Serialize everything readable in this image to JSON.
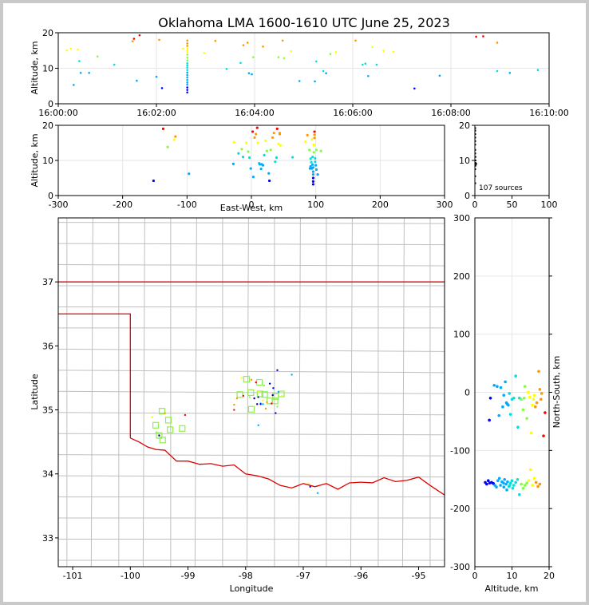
{
  "figure": {
    "title": "Oklahoma LMA 1600-1610 UTC June 25, 2023",
    "source_count_label": "107 sources"
  },
  "colors": {
    "frame_bg": "#c9c9c9",
    "state_border": "#e00000",
    "county_lines": "#c0c0c0",
    "station_marker": "#90ee50",
    "grid": "#e6e6e6"
  },
  "chart_data": [
    {
      "id": "time-altitude",
      "type": "scatter",
      "ylabel": "Altitude, km",
      "xlim": [
        "16:00:00",
        "16:10:00"
      ],
      "ylim": [
        0,
        20
      ],
      "x_ticks": [
        "16:00:00",
        "16:02:00",
        "16:04:00",
        "16:06:00",
        "16:08:00",
        "16:10:00"
      ],
      "y_ticks": [
        0,
        10,
        20
      ],
      "grid": true,
      "points": [
        [
          0.3,
          15.0
        ],
        [
          0.45,
          15.5
        ],
        [
          0.7,
          15.3
        ],
        [
          0.75,
          12.0
        ],
        [
          0.8,
          8.7
        ],
        [
          0.55,
          5.3
        ],
        [
          1.1,
          8.7
        ],
        [
          1.4,
          13.3
        ],
        [
          2.0,
          11.0
        ],
        [
          2.65,
          17.6
        ],
        [
          2.7,
          18.3
        ],
        [
          2.9,
          19.3
        ],
        [
          2.8,
          6.5
        ],
        [
          3.5,
          7.6
        ],
        [
          3.6,
          18.0
        ],
        [
          3.7,
          4.4
        ],
        [
          4.45,
          15.5
        ],
        [
          4.6,
          14.5
        ],
        [
          4.6,
          17.8
        ],
        [
          4.6,
          17.0
        ],
        [
          4.6,
          16.3
        ],
        [
          4.6,
          15.6
        ],
        [
          4.6,
          15.0
        ],
        [
          4.6,
          13.8
        ],
        [
          4.6,
          13.0
        ],
        [
          4.6,
          12.2
        ],
        [
          4.6,
          11.4
        ],
        [
          4.6,
          10.8
        ],
        [
          4.6,
          10.2
        ],
        [
          4.6,
          9.5
        ],
        [
          4.6,
          8.8
        ],
        [
          4.6,
          8.1
        ],
        [
          4.6,
          7.4
        ],
        [
          4.6,
          6.7
        ],
        [
          4.6,
          6.0
        ],
        [
          4.6,
          5.4
        ],
        [
          4.6,
          4.6
        ],
        [
          4.6,
          3.9
        ],
        [
          4.6,
          3.2
        ],
        [
          5.2,
          14.3
        ],
        [
          5.6,
          17.7
        ],
        [
          6.0,
          9.8
        ],
        [
          6.5,
          11.5
        ],
        [
          6.6,
          16.5
        ],
        [
          6.75,
          17.2
        ],
        [
          6.8,
          8.6
        ],
        [
          6.9,
          8.3
        ],
        [
          6.95,
          13.1
        ],
        [
          7.3,
          16.1
        ],
        [
          7.85,
          13.1
        ],
        [
          8.0,
          17.8
        ],
        [
          8.05,
          12.8
        ],
        [
          8.3,
          14.8
        ],
        [
          8.6,
          6.4
        ],
        [
          9.15,
          6.3
        ],
        [
          9.2,
          11.9
        ],
        [
          9.45,
          9.2
        ],
        [
          9.55,
          8.6
        ],
        [
          9.7,
          14.0
        ],
        [
          9.9,
          14.5
        ],
        [
          10.6,
          17.8
        ],
        [
          10.85,
          11.0
        ],
        [
          10.95,
          11.3
        ],
        [
          11.05,
          7.8
        ],
        [
          11.2,
          16.0
        ],
        [
          11.35,
          11.0
        ],
        [
          11.6,
          14.9
        ],
        [
          11.95,
          14.6
        ],
        [
          12.7,
          4.3
        ],
        [
          13.6,
          7.9
        ],
        [
          14.9,
          18.9
        ],
        [
          15.15,
          19.0
        ],
        [
          15.65,
          17.2
        ],
        [
          15.65,
          9.2
        ],
        [
          16.1,
          8.7
        ],
        [
          17.1,
          9.5
        ]
      ]
    },
    {
      "id": "east-west-altitude",
      "type": "scatter",
      "xlabel": "East-West, km",
      "ylabel": "Altitude, km",
      "xlim": [
        -300,
        300
      ],
      "ylim": [
        0,
        20
      ],
      "x_ticks": [
        -300,
        -200,
        -100,
        0,
        100,
        200,
        300
      ],
      "y_ticks": [
        0,
        10,
        20
      ],
      "grid": true,
      "points": [
        [
          -137,
          19.0
        ],
        [
          -130,
          13.8
        ],
        [
          -120,
          15.9
        ],
        [
          -118,
          16.8
        ],
        [
          -152,
          4.2
        ],
        [
          -97,
          6.2
        ],
        [
          -28,
          9.0
        ],
        [
          -27,
          15.2
        ],
        [
          -20,
          12.0
        ],
        [
          -15,
          13.2
        ],
        [
          -13,
          11.0
        ],
        [
          -8,
          15.0
        ],
        [
          -5,
          12.5
        ],
        [
          -3,
          10.8
        ],
        [
          -1,
          7.7
        ],
        [
          2,
          18.2
        ],
        [
          3,
          5.3
        ],
        [
          5,
          16.5
        ],
        [
          7,
          17.5
        ],
        [
          9,
          19.3
        ],
        [
          10,
          15.0
        ],
        [
          12,
          9.2
        ],
        [
          13,
          8.9
        ],
        [
          15,
          7.6
        ],
        [
          16,
          8.9
        ],
        [
          18,
          8.6
        ],
        [
          20,
          11.5
        ],
        [
          22,
          15.6
        ],
        [
          24,
          12.7
        ],
        [
          27,
          6.3
        ],
        [
          28,
          4.2
        ],
        [
          30,
          13.0
        ],
        [
          33,
          16.5
        ],
        [
          35,
          17.8
        ],
        [
          37,
          9.6
        ],
        [
          39,
          10.8
        ],
        [
          40,
          19.0
        ],
        [
          42,
          14.7
        ],
        [
          44,
          17.5
        ],
        [
          44,
          17.8
        ],
        [
          45,
          14.3
        ],
        [
          64,
          10.9
        ],
        [
          84,
          15.3
        ],
        [
          87,
          17.2
        ],
        [
          90,
          13.0
        ],
        [
          91,
          7.7
        ],
        [
          92,
          10.5
        ],
        [
          93,
          9.5
        ],
        [
          94,
          16.0
        ],
        [
          95,
          11.0
        ],
        [
          95,
          8.8
        ],
        [
          96,
          8.0
        ],
        [
          96,
          6.8
        ],
        [
          96,
          6.0
        ],
        [
          96,
          5.0
        ],
        [
          96,
          4.0
        ],
        [
          96,
          3.2
        ],
        [
          97,
          12.3
        ],
        [
          97,
          14.4
        ],
        [
          98,
          16.4
        ],
        [
          98,
          17.3
        ],
        [
          98,
          18.2
        ],
        [
          99,
          10.6
        ],
        [
          99,
          9.6
        ],
        [
          100,
          8.6
        ],
        [
          101,
          7.4
        ],
        [
          101,
          13.0
        ],
        [
          103,
          6.0
        ],
        [
          108,
          12.7
        ],
        [
          94,
          7.7
        ],
        [
          92,
          8.3
        ]
      ]
    },
    {
      "id": "altitude-histogram",
      "type": "scatter",
      "xlim": [
        0,
        100
      ],
      "ylim": [
        0,
        20
      ],
      "x_ticks": [
        0,
        50,
        100
      ],
      "y_ticks": [
        0,
        10,
        20
      ],
      "points": [
        [
          1,
          3.5
        ],
        [
          1,
          5.5
        ],
        [
          1,
          7.5
        ],
        [
          2,
          8.5
        ],
        [
          3,
          9.0
        ],
        [
          2,
          10.0
        ],
        [
          2,
          11.0
        ],
        [
          1,
          12.0
        ],
        [
          1,
          13.0
        ],
        [
          1,
          14.5
        ],
        [
          1,
          15.5
        ],
        [
          1,
          16.5
        ],
        [
          1,
          17.5
        ],
        [
          1,
          18.5
        ],
        [
          2,
          9.3
        ],
        [
          1,
          19.2
        ]
      ]
    },
    {
      "id": "plan-view",
      "type": "scatter",
      "xlabel": "Longitude",
      "ylabel": "Latitude",
      "xlim": [
        -101.25,
        -94.55
      ],
      "ylim": [
        32.55,
        38.0
      ],
      "x_ticks": [
        -101,
        -100,
        -99,
        -98,
        -97,
        -96,
        -95
      ],
      "y_ticks": [
        33,
        34,
        35,
        36,
        37
      ],
      "stations": [
        [
          -97.985,
          35.48
        ],
        [
          -97.76,
          35.43
        ],
        [
          -98.1,
          35.24
        ],
        [
          -97.91,
          35.27
        ],
        [
          -97.75,
          35.25
        ],
        [
          -97.67,
          35.24
        ],
        [
          -97.48,
          35.21
        ],
        [
          -97.38,
          35.25
        ],
        [
          -97.58,
          35.14
        ],
        [
          -97.49,
          35.14
        ],
        [
          -97.9,
          35.01
        ],
        [
          -99.45,
          34.98
        ],
        [
          -99.34,
          34.84
        ],
        [
          -99.56,
          34.76
        ],
        [
          -99.1,
          34.71
        ],
        [
          -99.31,
          34.69
        ],
        [
          -99.5,
          34.6
        ],
        [
          -99.44,
          34.53
        ]
      ],
      "points": [
        [
          -97.45,
          35.62
        ],
        [
          -97.2,
          35.55
        ],
        [
          -98.07,
          35.5
        ],
        [
          -97.9,
          35.47
        ],
        [
          -97.82,
          35.43
        ],
        [
          -97.68,
          35.38
        ],
        [
          -97.58,
          35.41
        ],
        [
          -97.52,
          35.34
        ],
        [
          -97.43,
          35.28
        ],
        [
          -97.37,
          35.22
        ],
        [
          -98.15,
          35.18
        ],
        [
          -98.04,
          35.22
        ],
        [
          -97.93,
          35.2
        ],
        [
          -97.85,
          35.18
        ],
        [
          -97.78,
          35.2
        ],
        [
          -97.74,
          35.1
        ],
        [
          -97.7,
          35.15
        ],
        [
          -97.63,
          35.12
        ],
        [
          -97.55,
          35.1
        ],
        [
          -97.45,
          35.05
        ],
        [
          -97.8,
          35.09
        ],
        [
          -97.74,
          35.09
        ],
        [
          -97.7,
          35.09
        ],
        [
          -97.78,
          35.28
        ],
        [
          -98.2,
          35.08
        ],
        [
          -98.2,
          35.0
        ],
        [
          -97.63,
          35.28
        ],
        [
          -97.53,
          35.23
        ],
        [
          -97.48,
          34.95
        ],
        [
          -97.78,
          34.76
        ],
        [
          -99.62,
          34.89
        ],
        [
          -99.4,
          34.95
        ],
        [
          -99.05,
          34.92
        ],
        [
          -99.55,
          34.65
        ],
        [
          -99.5,
          34.6
        ],
        [
          -96.88,
          33.8
        ],
        [
          -96.75,
          33.7
        ],
        [
          -96.9,
          33.85
        ],
        [
          -97.65,
          35.02
        ]
      ]
    },
    {
      "id": "altitude-north-south",
      "type": "scatter",
      "xlabel": "Altitude, km",
      "ylabel": "North-South, km",
      "xlim": [
        0,
        20
      ],
      "ylim": [
        -300,
        300
      ],
      "x_ticks": [
        0,
        10,
        20
      ],
      "y_ticks": [
        -300,
        -200,
        -100,
        0,
        100,
        200,
        300
      ],
      "grid": true,
      "points": [
        [
          4.2,
          -10
        ],
        [
          3.9,
          -48
        ],
        [
          5.2,
          12
        ],
        [
          6.0,
          10
        ],
        [
          6.5,
          -40
        ],
        [
          7.0,
          8
        ],
        [
          7.8,
          -5
        ],
        [
          7.5,
          -25
        ],
        [
          8.2,
          18
        ],
        [
          8.5,
          -18
        ],
        [
          8.7,
          -20
        ],
        [
          9.0,
          -22
        ],
        [
          9.3,
          -2
        ],
        [
          9.6,
          -38
        ],
        [
          10.0,
          -12
        ],
        [
          10.5,
          -10
        ],
        [
          11.0,
          28
        ],
        [
          11.6,
          -60
        ],
        [
          12.0,
          -10
        ],
        [
          12.5,
          -12
        ],
        [
          13.0,
          -30
        ],
        [
          13.3,
          -10
        ],
        [
          13.5,
          10
        ],
        [
          14.0,
          -45
        ],
        [
          14.4,
          0
        ],
        [
          14.8,
          -8
        ],
        [
          15.2,
          -70
        ],
        [
          15.5,
          -22
        ],
        [
          15.8,
          -12
        ],
        [
          16.0,
          -5
        ],
        [
          16.3,
          -25
        ],
        [
          16.7,
          -18
        ],
        [
          17.2,
          36
        ],
        [
          17.5,
          5
        ],
        [
          17.8,
          -12
        ],
        [
          18.0,
          -2
        ],
        [
          18.5,
          -75
        ],
        [
          18.9,
          -35
        ],
        [
          2.8,
          -155
        ],
        [
          3.2,
          -158
        ],
        [
          3.6,
          -152
        ],
        [
          4.0,
          -156
        ],
        [
          4.5,
          -155
        ],
        [
          5.0,
          -157
        ],
        [
          5.4,
          -160
        ],
        [
          5.8,
          -163
        ],
        [
          6.2,
          -152
        ],
        [
          6.6,
          -148
        ],
        [
          6.9,
          -160
        ],
        [
          7.3,
          -154
        ],
        [
          7.7,
          -156
        ],
        [
          8.0,
          -150
        ],
        [
          8.4,
          -158
        ],
        [
          8.8,
          -154
        ],
        [
          9.2,
          -162
        ],
        [
          9.6,
          -156
        ],
        [
          10.0,
          -152
        ],
        [
          10.5,
          -160
        ],
        [
          11.0,
          -155
        ],
        [
          11.5,
          -150
        ],
        [
          12.0,
          -176
        ],
        [
          12.5,
          -158
        ],
        [
          13.0,
          -165
        ],
        [
          13.5,
          -160
        ],
        [
          14.0,
          -156
        ],
        [
          14.5,
          -152
        ],
        [
          15.0,
          -133
        ],
        [
          15.5,
          -160
        ],
        [
          16.0,
          -148
        ],
        [
          16.5,
          -155
        ],
        [
          17.0,
          -162
        ],
        [
          17.5,
          -158
        ],
        [
          7.8,
          -163
        ],
        [
          8.6,
          -168
        ],
        [
          9.4,
          -160
        ],
        [
          10.2,
          -165
        ]
      ]
    }
  ]
}
